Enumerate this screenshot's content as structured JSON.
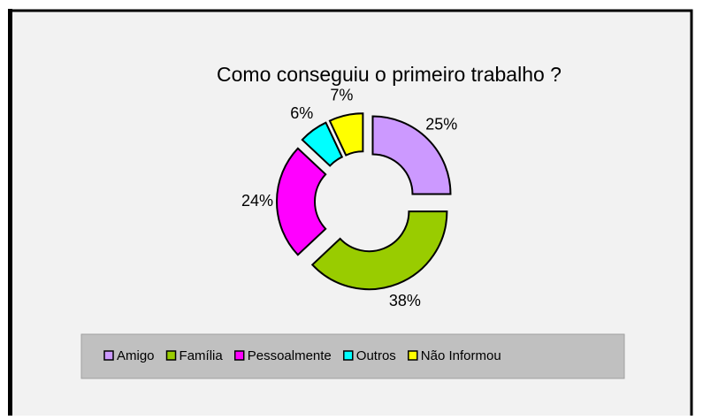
{
  "chart_data": {
    "type": "pie",
    "donut": true,
    "title": "Como conseguiu o primeiro trabalho ?",
    "categories": [
      "Amigo",
      "Família",
      "Pessoalmente",
      "Outros",
      "Não Informou"
    ],
    "values": [
      25,
      38,
      24,
      6,
      7
    ],
    "value_labels": [
      "25%",
      "38%",
      "24%",
      "6%",
      "7%"
    ],
    "colors": [
      "#cc99ff",
      "#99cc00",
      "#ff00ff",
      "#00ffff",
      "#ffff00"
    ],
    "legend": "bottom"
  }
}
